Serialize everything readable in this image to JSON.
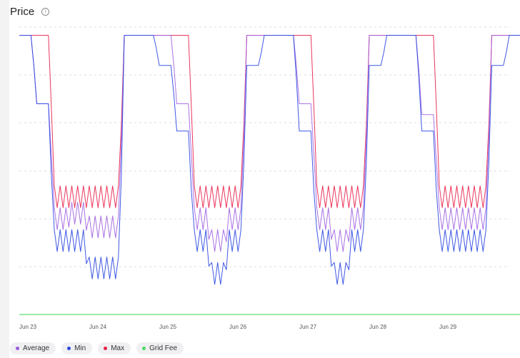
{
  "title": "Price",
  "info_icon": "info-icon",
  "chart_data": {
    "type": "line",
    "title": "Price",
    "xlabel": "",
    "ylabel": "",
    "x_ticks": [
      "Jun 23",
      "Jun 24",
      "Jun 25",
      "Jun 26",
      "Jun 27",
      "Jun 28",
      "Jun 29"
    ],
    "y_tick_labels_visible": false,
    "grid": "horizontal-dashed",
    "legend_position": "bottom-left",
    "hours_per_point": 6,
    "series": [
      {
        "name": "Average",
        "color": "#9b59e0",
        "values": [
          0.97,
          0.72,
          0.3,
          0.32,
          0.27,
          0.27,
          0.97,
          0.97,
          0.97,
          0.72,
          0.3,
          0.22,
          0.3,
          0.97,
          0.97,
          0.97,
          0.72,
          0.3,
          0.22,
          0.3,
          0.97,
          0.97,
          0.97,
          0.68,
          0.3,
          0.3,
          0.3,
          0.97,
          0.97,
          0.97,
          0.68,
          0.3,
          0.3,
          0.3,
          0.97,
          0.97,
          0.97,
          0.68,
          0.3,
          0.3,
          0.3,
          0.97,
          0.97,
          0.97,
          0.68,
          0.3,
          0.3,
          0.3,
          0.97,
          0.97,
          0.97,
          0.68,
          0.3,
          0.24,
          0.3,
          0.97,
          0.97
        ]
      },
      {
        "name": "Min",
        "color": "#2a46e0",
        "values": [
          0.97,
          0.72,
          0.22,
          0.22,
          0.12,
          0.12,
          0.97,
          0.97,
          0.86,
          0.62,
          0.22,
          0.1,
          0.22,
          0.86,
          0.97,
          0.97,
          0.62,
          0.22,
          0.1,
          0.22,
          0.86,
          0.97,
          0.97,
          0.62,
          0.22,
          0.22,
          0.22,
          0.86,
          0.97,
          0.97,
          0.62,
          0.22,
          0.22,
          0.22,
          0.86,
          0.97,
          0.97,
          0.62,
          0.22,
          0.22,
          0.22,
          0.86,
          0.97,
          0.97,
          0.62,
          0.22,
          0.22,
          0.22,
          0.86,
          0.97,
          0.97,
          0.62,
          0.22,
          0.12,
          0.22,
          0.86,
          0.86
        ]
      },
      {
        "name": "Max",
        "color": "#e8204a",
        "values": [
          0.97,
          0.97,
          0.38,
          0.38,
          0.38,
          0.38,
          0.97,
          0.97,
          0.97,
          0.97,
          0.38,
          0.38,
          0.38,
          0.97,
          0.97,
          0.97,
          0.97,
          0.38,
          0.38,
          0.38,
          0.97,
          0.97,
          0.97,
          0.97,
          0.38,
          0.38,
          0.38,
          0.97,
          0.97,
          0.97,
          0.97,
          0.38,
          0.38,
          0.38,
          0.97,
          0.97,
          0.97,
          0.97,
          0.38,
          0.38,
          0.38,
          0.97,
          0.97,
          0.97,
          0.97,
          0.38,
          0.38,
          0.38,
          0.97,
          0.97,
          0.97,
          0.97,
          0.38,
          0.38,
          0.38,
          0.93,
          0.93
        ]
      },
      {
        "name": "Grid Fee",
        "color": "#4cd964",
        "values": [
          -0.05,
          -0.05,
          -0.05,
          -0.05,
          -0.05,
          -0.05,
          -0.05,
          -0.05,
          -0.05,
          -0.05,
          -0.05,
          -0.05,
          -0.05,
          -0.05,
          -0.05,
          -0.05,
          -0.05,
          -0.05,
          -0.05,
          -0.05,
          -0.05,
          -0.05,
          -0.05,
          -0.05,
          -0.05,
          -0.05,
          -0.05,
          -0.05,
          -0.05,
          -0.05,
          -0.05,
          -0.05,
          -0.05,
          -0.05,
          -0.05,
          -0.05,
          -0.05,
          -0.05,
          -0.05,
          -0.05,
          -0.05,
          -0.05,
          -0.05,
          -0.05,
          -0.05,
          -0.05,
          -0.05,
          -0.05,
          -0.05,
          -0.05,
          -0.05,
          -0.05,
          -0.05,
          -0.05,
          -0.05,
          -0.05,
          -0.05
        ]
      }
    ],
    "ylim": [
      -0.05,
      1.0
    ]
  },
  "legend": [
    {
      "label": "Average",
      "color": "#9b59e0"
    },
    {
      "label": "Min",
      "color": "#2a46e0"
    },
    {
      "label": "Max",
      "color": "#e8204a"
    },
    {
      "label": "Grid Fee",
      "color": "#4cd964"
    }
  ]
}
